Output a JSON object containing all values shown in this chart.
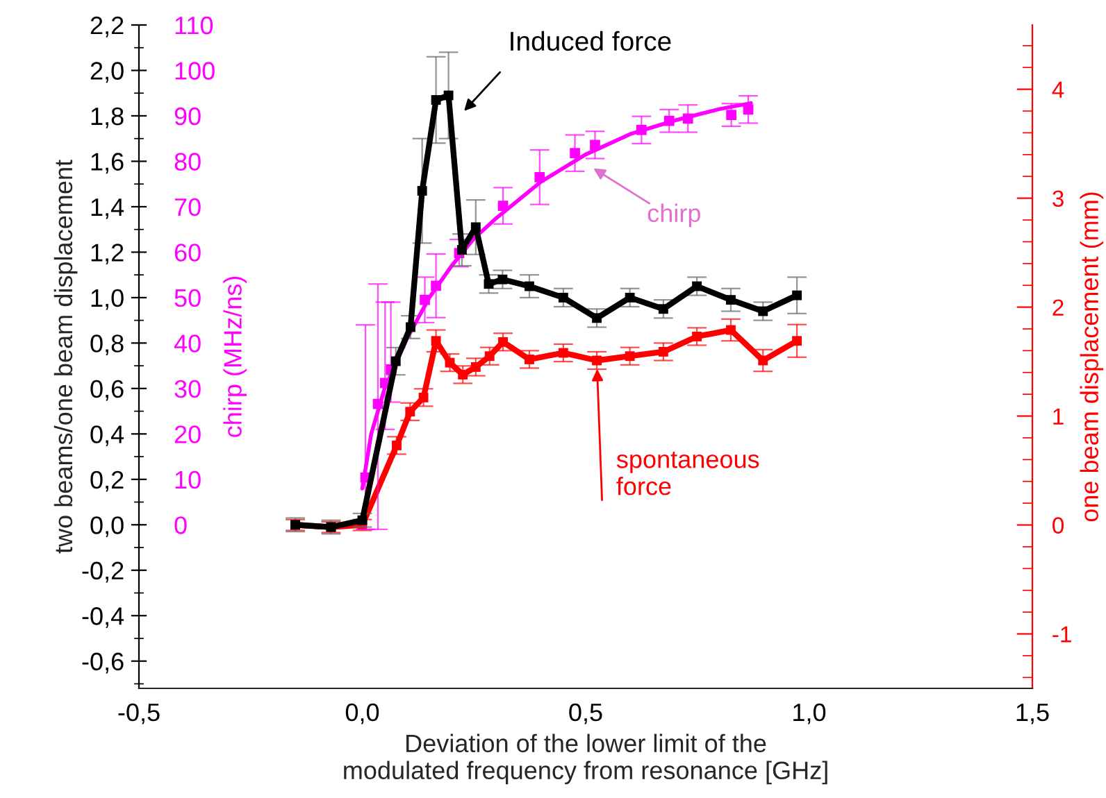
{
  "chart_data": {
    "type": "line",
    "xlabel": "Deviation of the lower limit of the\nmodulated frequency from resonance [GHz]",
    "ylabel": "two beams/one beam displacement",
    "y2label": "chirp (MHz/ns)",
    "y3label": "one beam displacement (mm)",
    "xlim": [
      -0.5,
      1.5
    ],
    "xticks": [
      {
        "value": -0.5,
        "label": "-0,5"
      },
      {
        "value": 0.0,
        "label": "0,0"
      },
      {
        "value": 0.5,
        "label": "0,5"
      },
      {
        "value": 1.0,
        "label": "1,0"
      },
      {
        "value": 1.5,
        "label": "1,5"
      }
    ],
    "ylim": [
      -0.72,
      2.2
    ],
    "yticks": [
      {
        "value": -0.6,
        "label": "-0,6"
      },
      {
        "value": -0.4,
        "label": "-0,4"
      },
      {
        "value": -0.2,
        "label": "-0,2"
      },
      {
        "value": 0.0,
        "label": "0,0"
      },
      {
        "value": 0.2,
        "label": "0,2"
      },
      {
        "value": 0.4,
        "label": "0,4"
      },
      {
        "value": 0.6,
        "label": "0,6"
      },
      {
        "value": 0.8,
        "label": "0,8"
      },
      {
        "value": 1.0,
        "label": "1,0"
      },
      {
        "value": 1.2,
        "label": "1,2"
      },
      {
        "value": 1.4,
        "label": "1,4"
      },
      {
        "value": 1.6,
        "label": "1,6"
      },
      {
        "value": 1.8,
        "label": "1,8"
      },
      {
        "value": 2.0,
        "label": "2,0"
      },
      {
        "value": 2.2,
        "label": "2,2"
      }
    ],
    "y2lim": [
      -36,
      110
    ],
    "y2ticks": [
      0,
      10,
      20,
      30,
      40,
      50,
      60,
      70,
      80,
      90,
      100,
      110
    ],
    "y3lim": [
      -1.5,
      4.59
    ],
    "y3ticks": [
      -1,
      0,
      1,
      2,
      3,
      4
    ],
    "marker": "square",
    "line_style": "solid",
    "series": [
      {
        "color": "#000000",
        "x": [
          -0.15,
          -0.07,
          0.0,
          0.075,
          0.108,
          0.134,
          0.165,
          0.193,
          0.223,
          0.254,
          0.283,
          0.314,
          0.374,
          0.45,
          0.525,
          0.599,
          0.674,
          0.749,
          0.825,
          0.897,
          0.973
        ],
        "values": [
          0,
          -0.01,
          0.02,
          0.72,
          0.87,
          1.47,
          1.87,
          1.89,
          1.21,
          1.31,
          1.06,
          1.08,
          1.05,
          1.0,
          0.91,
          1.0,
          0.95,
          1.05,
          0.99,
          0.94,
          1.01
        ],
        "errors": [
          0.03,
          0.03,
          0.03,
          0.06,
          0.05,
          0.23,
          0.19,
          0.19,
          0.07,
          0.12,
          0.04,
          0.04,
          0.05,
          0.04,
          0.04,
          0.04,
          0.04,
          0.04,
          0.05,
          0.04,
          0.08
        ]
      },
      {
        "axis": "y3",
        "color": "#ff0000",
        "x": [
          -0.15,
          -0.07,
          0.0,
          0.077,
          0.107,
          0.137,
          0.165,
          0.196,
          0.225,
          0.254,
          0.285,
          0.315,
          0.374,
          0.45,
          0.525,
          0.599,
          0.674,
          0.749,
          0.825,
          0.897,
          0.973
        ],
        "values": [
          0,
          -0.02,
          0,
          0.73,
          1.04,
          1.17,
          1.69,
          1.49,
          1.38,
          1.45,
          1.55,
          1.68,
          1.52,
          1.58,
          1.51,
          1.55,
          1.59,
          1.73,
          1.79,
          1.51,
          1.69
        ],
        "errors": [
          0.05,
          0.05,
          0.05,
          0.08,
          0.08,
          0.08,
          0.1,
          0.08,
          0.08,
          0.08,
          0.08,
          0.08,
          0.08,
          0.08,
          0.08,
          0.08,
          0.08,
          0.08,
          0.1,
          0.1,
          0.15
        ]
      },
      {
        "type": "scatter",
        "axis": "y2",
        "color": "#ff00ff",
        "x": [
          0.007,
          0.035,
          0.051,
          0.064,
          0.14,
          0.165,
          0.217,
          0.315,
          0.397,
          0.476,
          0.521,
          0.625,
          0.687,
          0.729,
          0.826,
          0.864
        ],
        "values": [
          10.4,
          26.6,
          31.2,
          34.2,
          49.5,
          52.6,
          59.8,
          70.2,
          76.5,
          81.8,
          83.6,
          86.9,
          88.9,
          89.4,
          90.2,
          91.4
        ],
        "errors": [
          [
            -1,
            44
          ],
          [
            -1,
            53
          ],
          [
            21,
            49
          ],
          [
            27,
            49
          ],
          5,
          7,
          3,
          4,
          6,
          4,
          3,
          3,
          2.5,
          3,
          2.5,
          3
        ]
      },
      {
        "type": "line",
        "axis": "y2",
        "color": "#ff00ff",
        "marker": "none",
        "x": [
          0.0,
          0.02,
          0.05,
          0.1,
          0.15,
          0.2,
          0.25,
          0.3,
          0.4,
          0.5,
          0.6,
          0.7,
          0.8,
          0.87
        ],
        "values": [
          8,
          20,
          30,
          41,
          50,
          57,
          63,
          67.5,
          75.5,
          81.5,
          86,
          89,
          91.5,
          92.8
        ]
      }
    ],
    "annotations": [
      "Induced force",
      "chirp",
      {
        "text": "spontaneous\nforce",
        "x": 0.525,
        "y": 0.72
      }
    ],
    "legend": false,
    "grid": false
  }
}
